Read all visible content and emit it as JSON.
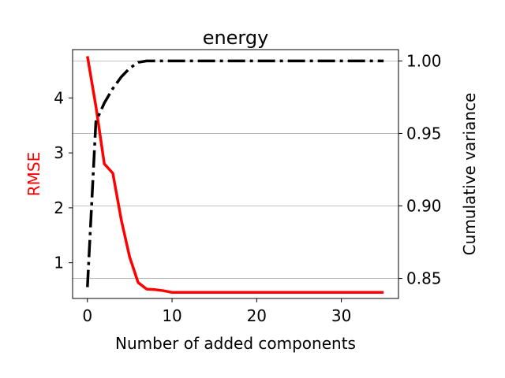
{
  "chart_data": {
    "type": "line",
    "title": "energy",
    "xlabel": "Number of added components",
    "ylabel_left": "RMSE",
    "ylabel_right": "Cumulative variance",
    "xlim": [
      -1.75,
      36.75
    ],
    "ylim_left": [
      0.35,
      4.88
    ],
    "ylim_right": [
      0.8362,
      1.0078
    ],
    "x_ticks": [
      0,
      10,
      20,
      30
    ],
    "y_ticks_left": [
      1,
      2,
      3,
      4
    ],
    "y_ticks_right": [
      0.85,
      0.9,
      0.95,
      1.0
    ],
    "y_tick_labels_right": [
      "0.85",
      "0.90",
      "0.95",
      "1.00"
    ],
    "grid": "horizontal lines at right-axis ticks",
    "legend": "none",
    "left_label_color": "#ff0000",
    "series": [
      {
        "axis": "left",
        "color": "#ff0000",
        "style": "solid",
        "x": [
          0,
          1,
          2,
          3,
          4,
          5,
          6,
          7,
          8,
          9,
          10,
          11,
          12,
          13,
          14,
          15,
          16,
          17,
          18,
          19,
          20,
          21,
          22,
          23,
          24,
          25,
          26,
          27,
          28,
          29,
          30,
          31,
          32,
          33,
          34,
          35
        ],
        "values": [
          4.76,
          3.85,
          2.8,
          2.63,
          1.78,
          1.1,
          0.64,
          0.52,
          0.51,
          0.49,
          0.46,
          0.46,
          0.46,
          0.46,
          0.46,
          0.46,
          0.46,
          0.46,
          0.46,
          0.46,
          0.46,
          0.46,
          0.46,
          0.46,
          0.46,
          0.46,
          0.46,
          0.46,
          0.46,
          0.46,
          0.46,
          0.46,
          0.46,
          0.46,
          0.46,
          0.46
        ]
      },
      {
        "axis": "right",
        "color": "#000000",
        "style": "dash-dot",
        "x": [
          0,
          1,
          2,
          3,
          4,
          5,
          6,
          7,
          8,
          9,
          10,
          11,
          12,
          13,
          14,
          15,
          16,
          17,
          18,
          19,
          20,
          21,
          22,
          23,
          24,
          25,
          26,
          27,
          28,
          29,
          30,
          31,
          32,
          33,
          34,
          35
        ],
        "values": [
          0.844,
          0.958,
          0.971,
          0.981,
          0.989,
          0.995,
          0.999,
          1.0,
          1.0,
          1.0,
          1.0,
          1.0,
          1.0,
          1.0,
          1.0,
          1.0,
          1.0,
          1.0,
          1.0,
          1.0,
          1.0,
          1.0,
          1.0,
          1.0,
          1.0,
          1.0,
          1.0,
          1.0,
          1.0,
          1.0,
          1.0,
          1.0,
          1.0,
          1.0,
          1.0,
          1.0
        ]
      }
    ]
  }
}
